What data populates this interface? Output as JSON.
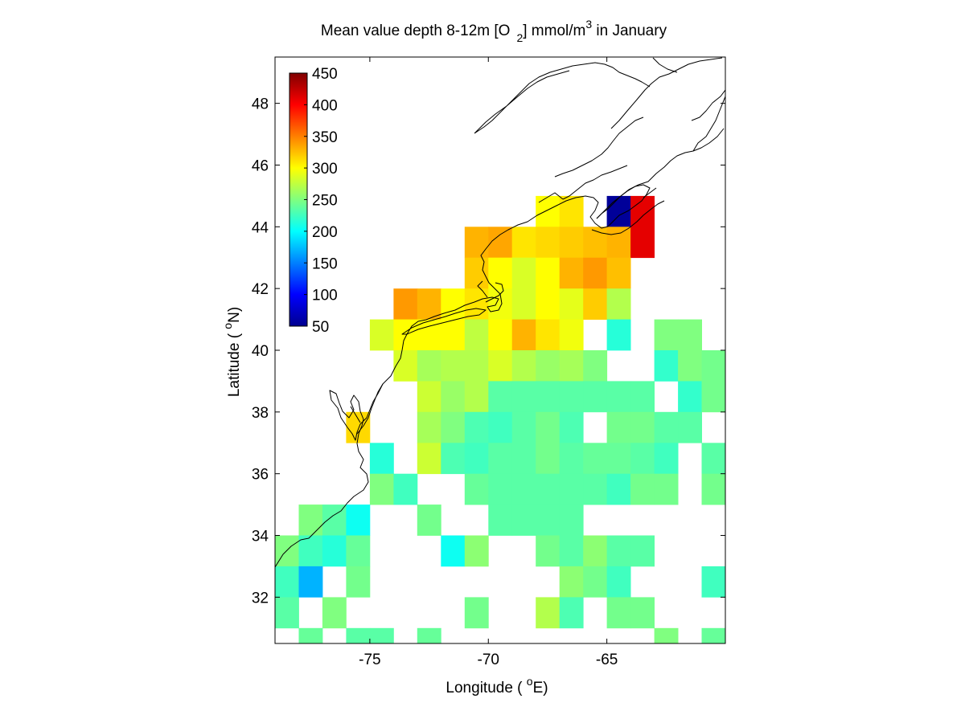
{
  "title": {
    "prefix": "Mean value depth 8-12m [O",
    "sub": "2",
    "mid": "] mmol/m",
    "sup": "3",
    "suffix": " in January"
  },
  "xlabel": {
    "text": "Longitude ( ",
    "sup": "o",
    "unit": "E)"
  },
  "ylabel": {
    "text": "Latitude ( ",
    "sup": "o",
    "unit": "N)"
  },
  "chart_data": {
    "type": "heatmap",
    "x_range": [
      -79.0,
      -60.0
    ],
    "y_range": [
      30.5,
      49.5
    ],
    "cell_size_deg": 1,
    "x_ticks": [
      -75,
      -70,
      -65
    ],
    "y_ticks": [
      32,
      34,
      36,
      38,
      40,
      42,
      44,
      46,
      48
    ],
    "colorbar": {
      "min": 50,
      "max": 450,
      "ticks": [
        50,
        100,
        150,
        200,
        250,
        300,
        350,
        400,
        450
      ],
      "colormap": "jet",
      "placement": "top-left inside"
    },
    "cells": [
      [
        -67.5,
        44.5,
        300
      ],
      [
        -66.5,
        44.5,
        310
      ],
      [
        -64.5,
        44.5,
        60
      ],
      [
        -63.5,
        44.5,
        410
      ],
      [
        -70.5,
        43.5,
        330
      ],
      [
        -69.5,
        43.5,
        335
      ],
      [
        -68.5,
        43.5,
        310
      ],
      [
        -67.5,
        43.5,
        315
      ],
      [
        -66.5,
        43.5,
        320
      ],
      [
        -65.5,
        43.5,
        325
      ],
      [
        -64.5,
        43.5,
        330
      ],
      [
        -63.5,
        43.5,
        410
      ],
      [
        -70.5,
        42.5,
        320
      ],
      [
        -69.5,
        42.5,
        300
      ],
      [
        -68.5,
        42.5,
        285
      ],
      [
        -67.5,
        42.5,
        300
      ],
      [
        -66.5,
        42.5,
        330
      ],
      [
        -65.5,
        42.5,
        340
      ],
      [
        -64.5,
        42.5,
        325
      ],
      [
        -73.5,
        41.5,
        340
      ],
      [
        -72.5,
        41.5,
        330
      ],
      [
        -71.5,
        41.5,
        300
      ],
      [
        -70.5,
        41.5,
        310
      ],
      [
        -69.5,
        41.5,
        295
      ],
      [
        -68.5,
        41.5,
        285
      ],
      [
        -67.5,
        41.5,
        300
      ],
      [
        -66.5,
        41.5,
        290
      ],
      [
        -65.5,
        41.5,
        320
      ],
      [
        -64.5,
        41.5,
        270
      ],
      [
        -74.5,
        40.5,
        285
      ],
      [
        -73.5,
        40.5,
        300
      ],
      [
        -72.5,
        40.5,
        300
      ],
      [
        -71.5,
        40.5,
        300
      ],
      [
        -70.5,
        40.5,
        275
      ],
      [
        -69.5,
        40.5,
        300
      ],
      [
        -68.5,
        40.5,
        330
      ],
      [
        -67.5,
        40.5,
        310
      ],
      [
        -66.5,
        40.5,
        295
      ],
      [
        -64.5,
        40.5,
        215
      ],
      [
        -62.5,
        40.5,
        250
      ],
      [
        -61.5,
        40.5,
        250
      ],
      [
        -73.5,
        39.5,
        285
      ],
      [
        -72.5,
        39.5,
        265
      ],
      [
        -71.5,
        39.5,
        270
      ],
      [
        -70.5,
        39.5,
        270
      ],
      [
        -69.5,
        39.5,
        285
      ],
      [
        -68.5,
        39.5,
        270
      ],
      [
        -67.5,
        39.5,
        260
      ],
      [
        -66.5,
        39.5,
        265
      ],
      [
        -65.5,
        39.5,
        250
      ],
      [
        -62.5,
        39.5,
        220
      ],
      [
        -61.5,
        39.5,
        250
      ],
      [
        -60.5,
        39.5,
        245
      ],
      [
        -72.5,
        38.5,
        280
      ],
      [
        -71.5,
        38.5,
        260
      ],
      [
        -70.5,
        38.5,
        270
      ],
      [
        -69.5,
        38.5,
        235
      ],
      [
        -68.5,
        38.5,
        235
      ],
      [
        -67.5,
        38.5,
        235
      ],
      [
        -66.5,
        38.5,
        235
      ],
      [
        -65.5,
        38.5,
        235
      ],
      [
        -64.5,
        38.5,
        235
      ],
      [
        -63.5,
        38.5,
        235
      ],
      [
        -61.5,
        38.5,
        220
      ],
      [
        -60.5,
        38.5,
        245
      ],
      [
        -75.5,
        37.5,
        315
      ],
      [
        -72.5,
        37.5,
        265
      ],
      [
        -71.5,
        37.5,
        250
      ],
      [
        -70.5,
        37.5,
        230
      ],
      [
        -69.5,
        37.5,
        225
      ],
      [
        -68.5,
        37.5,
        235
      ],
      [
        -67.5,
        37.5,
        245
      ],
      [
        -66.5,
        37.5,
        230
      ],
      [
        -64.5,
        37.5,
        245
      ],
      [
        -63.5,
        37.5,
        245
      ],
      [
        -62.5,
        37.5,
        235
      ],
      [
        -61.5,
        37.5,
        235
      ],
      [
        -74.5,
        36.5,
        215
      ],
      [
        -72.5,
        36.5,
        280
      ],
      [
        -71.5,
        36.5,
        230
      ],
      [
        -70.5,
        36.5,
        225
      ],
      [
        -69.5,
        36.5,
        235
      ],
      [
        -68.5,
        36.5,
        235
      ],
      [
        -67.5,
        36.5,
        245
      ],
      [
        -66.5,
        36.5,
        235
      ],
      [
        -65.5,
        36.5,
        240
      ],
      [
        -64.5,
        36.5,
        240
      ],
      [
        -63.5,
        36.5,
        235
      ],
      [
        -62.5,
        36.5,
        225
      ],
      [
        -60.5,
        36.5,
        235
      ],
      [
        -74.5,
        35.5,
        250
      ],
      [
        -73.5,
        35.5,
        225
      ],
      [
        -70.5,
        35.5,
        240
      ],
      [
        -69.5,
        35.5,
        235
      ],
      [
        -68.5,
        35.5,
        235
      ],
      [
        -67.5,
        35.5,
        235
      ],
      [
        -66.5,
        35.5,
        235
      ],
      [
        -65.5,
        35.5,
        235
      ],
      [
        -64.5,
        35.5,
        225
      ],
      [
        -63.5,
        35.5,
        245
      ],
      [
        -62.5,
        35.5,
        245
      ],
      [
        -60.5,
        35.5,
        245
      ],
      [
        -77.5,
        34.5,
        250
      ],
      [
        -76.5,
        34.5,
        235
      ],
      [
        -75.5,
        34.5,
        205
      ],
      [
        -72.5,
        34.5,
        245
      ],
      [
        -69.5,
        34.5,
        235
      ],
      [
        -68.5,
        34.5,
        235
      ],
      [
        -67.5,
        34.5,
        235
      ],
      [
        -66.5,
        34.5,
        235
      ],
      [
        -78.5,
        33.5,
        250
      ],
      [
        -77.5,
        33.5,
        225
      ],
      [
        -76.5,
        33.5,
        215
      ],
      [
        -75.5,
        33.5,
        240
      ],
      [
        -71.5,
        33.5,
        205
      ],
      [
        -70.5,
        33.5,
        255
      ],
      [
        -67.5,
        33.5,
        245
      ],
      [
        -66.5,
        33.5,
        235
      ],
      [
        -65.5,
        33.5,
        255
      ],
      [
        -64.5,
        33.5,
        235
      ],
      [
        -63.5,
        33.5,
        235
      ],
      [
        -78.5,
        32.5,
        225
      ],
      [
        -77.5,
        32.5,
        170
      ],
      [
        -75.5,
        32.5,
        245
      ],
      [
        -66.5,
        32.5,
        255
      ],
      [
        -65.5,
        32.5,
        245
      ],
      [
        -64.5,
        32.5,
        225
      ],
      [
        -60.5,
        32.5,
        225
      ],
      [
        -78.5,
        31.5,
        235
      ],
      [
        -76.5,
        31.5,
        250
      ],
      [
        -70.5,
        31.5,
        245
      ],
      [
        -67.5,
        31.5,
        270
      ],
      [
        -66.5,
        31.5,
        230
      ],
      [
        -64.5,
        31.5,
        245
      ],
      [
        -63.5,
        31.5,
        245
      ],
      [
        -77.5,
        30.5,
        240
      ],
      [
        -75.5,
        30.5,
        235
      ],
      [
        -74.5,
        30.5,
        235
      ],
      [
        -72.5,
        30.5,
        240
      ],
      [
        -62.5,
        30.5,
        250
      ],
      [
        -60.5,
        30.5,
        240
      ]
    ]
  }
}
